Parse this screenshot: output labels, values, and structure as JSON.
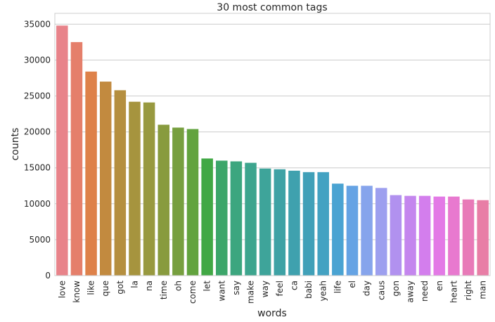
{
  "chart_data": {
    "type": "bar",
    "title": "30 most common tags",
    "xlabel": "words",
    "ylabel": "counts",
    "ylim": [
      0,
      36500
    ],
    "yticks": [
      0,
      5000,
      10000,
      15000,
      20000,
      25000,
      30000,
      35000
    ],
    "grid": "horizontal",
    "categories": [
      "love",
      "know",
      "like",
      "que",
      "got",
      "la",
      "na",
      "time",
      "oh",
      "come",
      "let",
      "want",
      "say",
      "make",
      "way",
      "feel",
      "ca",
      "babi",
      "yeah",
      "life",
      "el",
      "day",
      "caus",
      "gon",
      "away",
      "need",
      "en",
      "heart",
      "right",
      "man"
    ],
    "values": [
      34800,
      32500,
      28400,
      27000,
      25800,
      24200,
      24100,
      21000,
      20600,
      20400,
      16300,
      16000,
      15900,
      15700,
      14900,
      14800,
      14600,
      14400,
      14400,
      12800,
      12500,
      12500,
      12200,
      11200,
      11100,
      11100,
      11000,
      11000,
      10600,
      10500
    ],
    "colors": [
      "#e8838a",
      "#e57f6b",
      "#de8149",
      "#c28a3f",
      "#b58f3f",
      "#a6943e",
      "#98993f",
      "#889b3e",
      "#779f3f",
      "#62a33e",
      "#41a845",
      "#3ca66a",
      "#3ca67f",
      "#3da58e",
      "#3ea49a",
      "#3ea2a5",
      "#3fa1ae",
      "#40a0b8",
      "#43a2c2",
      "#4aa3d2",
      "#65a3e4",
      "#86a4ec",
      "#9d9fef",
      "#b191ef",
      "#c486ee",
      "#d37eed",
      "#e37ae6",
      "#e879cf",
      "#e87ab8",
      "#e87ea6"
    ]
  }
}
